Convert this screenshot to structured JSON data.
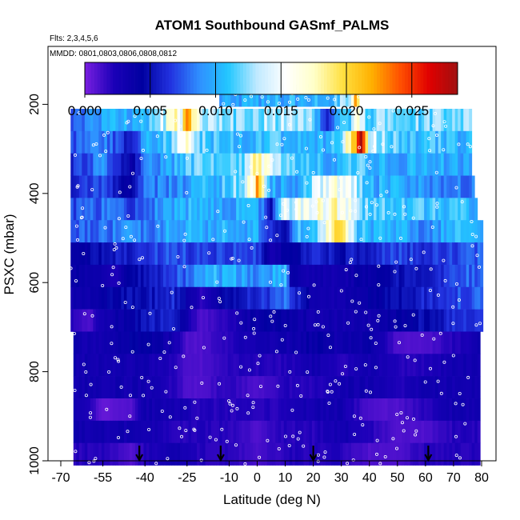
{
  "chart_data": {
    "type": "heatmap",
    "title": "ATOM1 Southbound GASmf_PALMS",
    "subtitle_flights": "Flts: 2,3,4,5,6",
    "subtitle_dates": "MMDD: 0801,0803,0806,0808,0812",
    "xlabel": "Latitude (deg N)",
    "ylabel": "PSXC (mbar)",
    "xlim": [
      -70,
      80
    ],
    "ylim": [
      1000,
      70
    ],
    "x_ticks": [
      -70,
      -55,
      -40,
      -25,
      -10,
      0,
      10,
      20,
      30,
      40,
      50,
      60,
      70,
      80
    ],
    "x_tick_labels": [
      "-70",
      "-55",
      "-40",
      "-25",
      "-10",
      "0",
      "10",
      "20",
      "30",
      "40",
      "50",
      "60",
      "70",
      "80"
    ],
    "y_ticks": [
      200,
      400,
      600,
      800,
      1000
    ],
    "y_tick_labels": [
      "200",
      "400",
      "600",
      "800",
      "1000"
    ],
    "colorbar": {
      "min": 0.0,
      "max": 0.0285,
      "ticks": [
        0.0,
        0.005,
        0.01,
        0.015,
        0.02,
        0.025
      ],
      "tick_labels": [
        "0.000",
        "0.005",
        "0.010",
        "0.015",
        "0.020",
        "0.025"
      ],
      "colors": [
        "#7a1fe0",
        "#1b00b8",
        "#0000a0",
        "#2233e0",
        "#2f8fff",
        "#22c7ff",
        "#bfe9ff",
        "#ffffff",
        "#ffffc8",
        "#ffe040",
        "#ffb000",
        "#ff5000",
        "#e00000",
        "#a01010"
      ]
    },
    "pressure_levels": [
      180,
      235,
      285,
      335,
      385,
      435,
      485,
      535,
      585,
      635,
      685,
      735,
      785,
      835,
      885,
      935,
      985
    ],
    "latitude_coverage": [
      {
        "p": 180,
        "lat": [
          -13.5,
          37
        ]
      },
      {
        "p": 235,
        "lat": [
          -66.5,
          76
        ]
      },
      {
        "p": 285,
        "lat": [
          -66.5,
          76
        ]
      },
      {
        "p": 335,
        "lat": [
          -66.5,
          76
        ]
      },
      {
        "p": 385,
        "lat": [
          -66.5,
          77
        ]
      },
      {
        "p": 435,
        "lat": [
          -66.5,
          78
        ]
      },
      {
        "p": 485,
        "lat": [
          -66.5,
          80
        ]
      },
      {
        "p": 535,
        "lat": [
          -66.5,
          80
        ]
      },
      {
        "p": 585,
        "lat": [
          -66.5,
          80
        ]
      },
      {
        "p": 635,
        "lat": [
          -66.5,
          80
        ]
      },
      {
        "p": 685,
        "lat": [
          -66.5,
          80
        ]
      },
      {
        "p": 735,
        "lat": [
          -65.5,
          79
        ]
      },
      {
        "p": 785,
        "lat": [
          -65.5,
          79
        ]
      },
      {
        "p": 835,
        "lat": [
          -65.5,
          79
        ]
      },
      {
        "p": 885,
        "lat": [
          -65.5,
          79
        ]
      },
      {
        "p": 935,
        "lat": [
          -65.5,
          79
        ]
      },
      {
        "p": 985,
        "lat": [
          -65.5,
          79
        ]
      }
    ],
    "gas_fraction_anchors": [
      {
        "p": 180,
        "lat": [
          -13,
          0,
          10,
          25,
          30,
          33,
          35,
          37
        ],
        "v": [
          0.01,
          0.01,
          0.01,
          0.01,
          0.012,
          0.014,
          0.02,
          0.016
        ]
      },
      {
        "p": 235,
        "lat": [
          -66,
          -50,
          -40,
          -33,
          -30,
          -27,
          -25,
          -20,
          -10,
          0,
          10,
          20,
          25,
          30,
          33,
          35,
          40,
          50,
          60,
          76
        ],
        "v": [
          0.008,
          0.01,
          0.01,
          0.014,
          0.018,
          0.016,
          0.022,
          0.013,
          0.012,
          0.013,
          0.013,
          0.012,
          0.006,
          0.01,
          0.012,
          0.016,
          0.012,
          0.012,
          0.012,
          0.012
        ]
      },
      {
        "p": 285,
        "lat": [
          -66,
          -55,
          -45,
          -40,
          -30,
          -25,
          -20,
          -15,
          -5,
          5,
          15,
          25,
          30,
          33,
          35,
          37,
          40,
          50,
          60,
          76
        ],
        "v": [
          0.007,
          0.009,
          0.005,
          0.01,
          0.012,
          0.016,
          0.012,
          0.011,
          0.01,
          0.011,
          0.01,
          0.01,
          0.012,
          0.018,
          0.024,
          0.026,
          0.015,
          0.011,
          0.011,
          0.01
        ]
      },
      {
        "p": 335,
        "lat": [
          -66,
          -55,
          -45,
          -40,
          -30,
          -20,
          -10,
          -5,
          0,
          10,
          20,
          25,
          30,
          35,
          40,
          50,
          60,
          76
        ],
        "v": [
          0.006,
          0.009,
          0.004,
          0.008,
          0.01,
          0.012,
          0.012,
          0.011,
          0.018,
          0.012,
          0.011,
          0.01,
          0.01,
          0.012,
          0.01,
          0.01,
          0.01,
          0.009
        ]
      },
      {
        "p": 385,
        "lat": [
          -66,
          -55,
          -45,
          -40,
          -30,
          -20,
          -10,
          -5,
          0,
          5,
          15,
          20,
          25,
          30,
          35,
          40,
          50,
          60,
          77
        ],
        "v": [
          0.006,
          0.007,
          0.004,
          0.008,
          0.009,
          0.01,
          0.011,
          0.013,
          0.021,
          0.01,
          0.009,
          0.013,
          0.015,
          0.016,
          0.014,
          0.01,
          0.01,
          0.009,
          0.008
        ]
      },
      {
        "p": 435,
        "lat": [
          -66,
          -55,
          -45,
          -40,
          -30,
          -20,
          -10,
          0,
          5,
          10,
          20,
          25,
          30,
          35,
          40,
          50,
          60,
          78
        ],
        "v": [
          0.007,
          0.008,
          0.007,
          0.008,
          0.01,
          0.01,
          0.01,
          0.01,
          0.005,
          0.014,
          0.016,
          0.016,
          0.017,
          0.013,
          0.011,
          0.011,
          0.011,
          0.01
        ]
      },
      {
        "p": 485,
        "lat": [
          -66,
          -55,
          -45,
          -40,
          -30,
          -20,
          -10,
          0,
          5,
          10,
          15,
          20,
          25,
          28,
          30,
          35,
          40,
          50,
          60,
          70,
          80
        ],
        "v": [
          0.007,
          0.008,
          0.009,
          0.008,
          0.01,
          0.01,
          0.01,
          0.01,
          0.006,
          0.005,
          0.011,
          0.01,
          0.016,
          0.021,
          0.018,
          0.012,
          0.01,
          0.01,
          0.009,
          0.01,
          0.011
        ]
      },
      {
        "p": 535,
        "lat": [
          -66,
          -55,
          -45,
          -40,
          -30,
          -20,
          -10,
          0,
          5,
          15,
          20,
          30,
          40,
          50,
          60,
          80
        ],
        "v": [
          0.004,
          0.005,
          0.006,
          0.007,
          0.007,
          0.007,
          0.007,
          0.007,
          0.003,
          0.005,
          0.006,
          0.005,
          0.006,
          0.007,
          0.006,
          0.008
        ]
      },
      {
        "p": 585,
        "lat": [
          -66,
          -55,
          -50,
          -45,
          -40,
          -30,
          -20,
          -15,
          -10,
          0,
          10,
          12,
          20,
          30,
          40,
          50,
          60,
          70,
          80
        ],
        "v": [
          0.004,
          0.003,
          0.002,
          0.005,
          0.005,
          0.007,
          0.009,
          0.01,
          0.01,
          0.009,
          0.011,
          0.004,
          0.003,
          0.003,
          0.004,
          0.005,
          0.005,
          0.007,
          0.008
        ]
      },
      {
        "p": 635,
        "lat": [
          -66,
          -55,
          -45,
          -40,
          -30,
          -25,
          -20,
          -10,
          0,
          10,
          20,
          30,
          40,
          50,
          60,
          70,
          80
        ],
        "v": [
          0.003,
          0.004,
          0.005,
          0.005,
          0.006,
          0.004,
          0.002,
          0.005,
          0.006,
          0.008,
          0.003,
          0.003,
          0.004,
          0.005,
          0.006,
          0.007,
          0.008
        ]
      },
      {
        "p": 685,
        "lat": [
          -66,
          -60,
          -55,
          -45,
          -40,
          -30,
          -25,
          -20,
          -10,
          0,
          10,
          20,
          30,
          40,
          50,
          60,
          70,
          80
        ],
        "v": [
          0.002,
          0.001,
          0.003,
          0.004,
          0.005,
          0.006,
          0.003,
          0.001,
          0.002,
          0.004,
          0.004,
          0.003,
          0.003,
          0.003,
          0.004,
          0.005,
          0.006,
          0.007
        ]
      },
      {
        "p": 735,
        "lat": [
          -65,
          -55,
          -45,
          -40,
          -30,
          -25,
          -20,
          -10,
          0,
          10,
          20,
          30,
          40,
          50,
          60,
          70,
          79
        ],
        "v": [
          0.003,
          0.003,
          0.004,
          0.004,
          0.003,
          0.001,
          0.001,
          0.002,
          0.003,
          0.003,
          0.004,
          0.003,
          0.004,
          0.001,
          0.001,
          0.002,
          0.003
        ]
      },
      {
        "p": 785,
        "lat": [
          -65,
          -55,
          -45,
          -40,
          -30,
          -25,
          -20,
          -10,
          0,
          10,
          20,
          30,
          40,
          50,
          60,
          70,
          79
        ],
        "v": [
          0.003,
          0.003,
          0.003,
          0.003,
          0.002,
          0.001,
          0.001,
          0.002,
          0.002,
          0.002,
          0.003,
          0.002,
          0.003,
          0.002,
          0.002,
          0.003,
          0.003
        ]
      },
      {
        "p": 835,
        "lat": [
          -65,
          -55,
          -45,
          -40,
          -30,
          -25,
          -20,
          -10,
          0,
          10,
          20,
          30,
          40,
          50,
          60,
          70,
          79
        ],
        "v": [
          0.003,
          0.003,
          0.003,
          0.003,
          0.002,
          0.001,
          0.001,
          0.002,
          0.001,
          0.002,
          0.002,
          0.003,
          0.003,
          0.002,
          0.003,
          0.003,
          0.003
        ]
      },
      {
        "p": 885,
        "lat": [
          -65,
          -60,
          -55,
          -45,
          -40,
          -30,
          -20,
          -10,
          0,
          10,
          20,
          30,
          40,
          50,
          60,
          70,
          79
        ],
        "v": [
          0.003,
          0.002,
          0.0005,
          0.001,
          0.003,
          0.003,
          0.002,
          0.002,
          0.002,
          0.002,
          0.003,
          0.003,
          0.001,
          0.001,
          0.002,
          0.003,
          0.003
        ]
      },
      {
        "p": 935,
        "lat": [
          -65,
          -55,
          -45,
          -40,
          -30,
          -20,
          -10,
          0,
          10,
          20,
          30,
          40,
          50,
          60,
          70,
          79
        ],
        "v": [
          0.003,
          0.003,
          0.003,
          0.003,
          0.002,
          0.002,
          0.002,
          0.001,
          0.002,
          0.002,
          0.003,
          0.002,
          0.001,
          0.001,
          0.002,
          0.002
        ]
      },
      {
        "p": 985,
        "lat": [
          -65,
          -55,
          -45,
          -40,
          -30,
          -20,
          -10,
          0,
          10,
          20,
          30,
          40,
          50,
          60,
          70,
          79
        ],
        "v": [
          0.002,
          0.002,
          0.001,
          0.002,
          0.003,
          0.002,
          0.002,
          0.001,
          0.002,
          0.002,
          0.002,
          0.001,
          0.001,
          0.002,
          0.002,
          0.002
        ]
      }
    ],
    "surface_markers_lat": [
      -42,
      -13,
      20,
      61
    ]
  }
}
